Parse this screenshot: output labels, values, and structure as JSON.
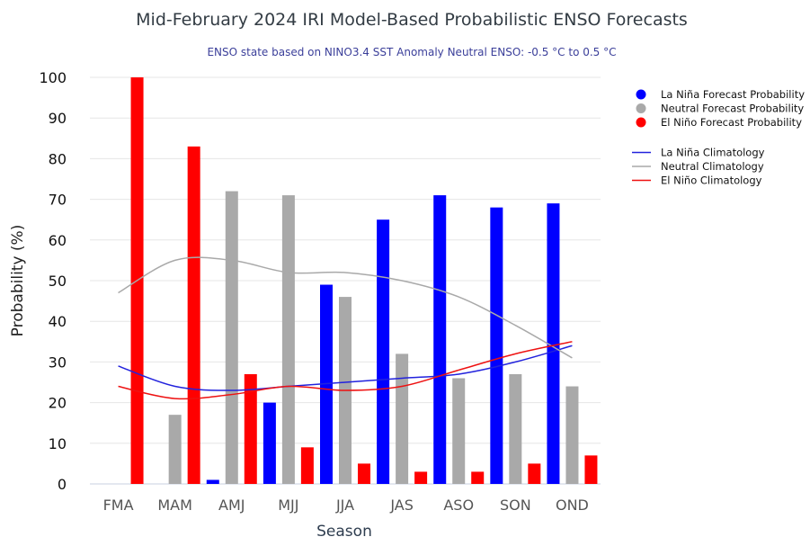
{
  "chart_data": {
    "type": "bar",
    "title": "Mid-February 2024 IRI Model-Based Probabilistic ENSO Forecasts",
    "subtitle": "ENSO state based on NINO3.4 SST Anomaly Neutral ENSO: -0.5 °C to 0.5 °C",
    "xlabel": "Season",
    "ylabel": "Probability (%)",
    "ylim": [
      0,
      100
    ],
    "yticks": [
      "0",
      "10",
      "20",
      "30",
      "40",
      "50",
      "60",
      "70",
      "80",
      "90",
      "100"
    ],
    "grid": true,
    "legend_position": "right",
    "categories": [
      "FMA",
      "MAM",
      "AMJ",
      "MJJ",
      "JJA",
      "JAS",
      "ASO",
      "SON",
      "OND"
    ],
    "series": [
      {
        "name": "La Niña Forecast Probability",
        "kind": "bar",
        "color": "#0000ff",
        "values": [
          0,
          0,
          1,
          20,
          49,
          65,
          71,
          68,
          69
        ]
      },
      {
        "name": "Neutral Forecast Probability",
        "kind": "bar",
        "color": "#a9a9a9",
        "values": [
          0,
          17,
          72,
          71,
          46,
          32,
          26,
          27,
          24
        ]
      },
      {
        "name": "El Niño Forecast Probability",
        "kind": "bar",
        "color": "#ff0000",
        "values": [
          100,
          83,
          27,
          9,
          5,
          3,
          3,
          5,
          7
        ]
      },
      {
        "name": "La Niña Climatology",
        "kind": "line",
        "color": "#2222dd",
        "values": [
          29,
          24,
          23,
          24,
          25,
          26,
          27,
          30,
          34
        ]
      },
      {
        "name": "Neutral Climatology",
        "kind": "line",
        "color": "#a9a9a9",
        "values": [
          47,
          55,
          55,
          52,
          52,
          50,
          46,
          39,
          31
        ]
      },
      {
        "name": "El Niño Climatology",
        "kind": "line",
        "color": "#ee1111",
        "values": [
          24,
          21,
          22,
          24,
          23,
          24,
          28,
          32,
          35
        ]
      }
    ]
  }
}
